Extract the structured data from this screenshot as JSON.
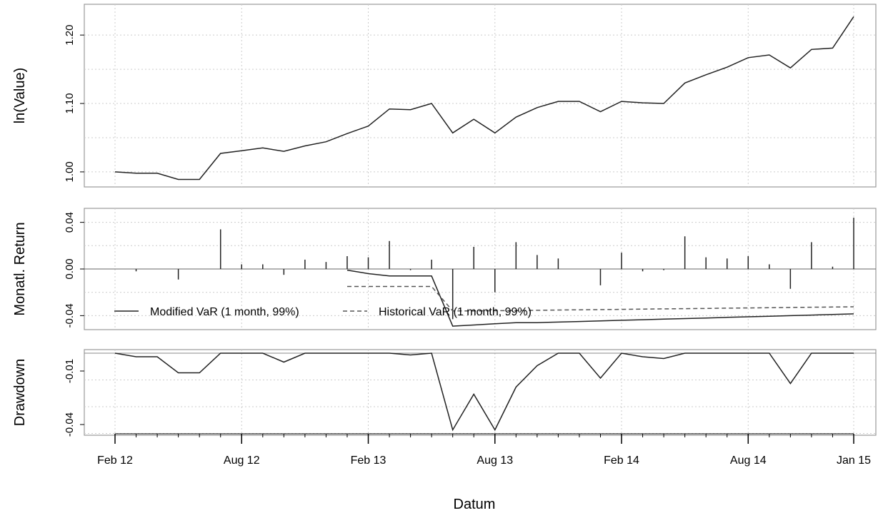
{
  "chart_data": [
    {
      "type": "line",
      "ylabel": "ln(Value)",
      "y_ticks": [
        "1.00",
        "1.10",
        "1.20"
      ],
      "ylim": [
        0.978,
        1.245
      ],
      "grid": true,
      "series": [
        {
          "values": [
            1.0,
            0.998,
            0.998,
            0.989,
            0.989,
            1.027,
            1.031,
            1.035,
            1.03,
            1.038,
            1.044,
            1.056,
            1.067,
            1.092,
            1.091,
            1.1,
            1.057,
            1.077,
            1.057,
            1.08,
            1.094,
            1.103,
            1.103,
            1.088,
            1.103,
            1.101,
            1.1,
            1.13,
            1.142,
            1.153,
            1.167,
            1.171,
            1.152,
            1.179,
            1.181,
            1.227
          ]
        }
      ]
    },
    {
      "type": "bar",
      "ylabel": "Monatl. Return",
      "y_ticks": [
        "-0.04",
        "0.00",
        "0.04"
      ],
      "ylim": [
        -0.052,
        0.052
      ],
      "grid": true,
      "bars": {
        "values": [
          0.0,
          -0.002,
          0.0,
          -0.009,
          0.0,
          0.034,
          0.004,
          0.004,
          -0.005,
          0.008,
          0.006,
          0.011,
          0.01,
          0.024,
          -0.001,
          0.008,
          -0.043,
          0.019,
          -0.02,
          0.023,
          0.012,
          0.009,
          0.0,
          -0.014,
          0.014,
          -0.002,
          -0.001,
          0.028,
          0.01,
          0.009,
          0.011,
          0.004,
          -0.017,
          0.023,
          0.002,
          0.044
        ]
      },
      "series": [
        {
          "name": "Modified VaR (1 month, 99%)",
          "dash": "solid",
          "start_index": 11,
          "values": [
            -0.001,
            -0.004,
            -0.006,
            -0.006,
            -0.006,
            -0.049,
            -0.048,
            -0.047,
            -0.046,
            -0.046,
            -0.0455,
            -0.045,
            -0.0445,
            -0.044,
            -0.0435,
            -0.043,
            -0.0425,
            -0.042,
            -0.0415,
            -0.041,
            -0.0405,
            -0.04,
            -0.0395,
            -0.039,
            -0.0385
          ]
        },
        {
          "name": "Historical VaR (1 month, 99%)",
          "dash": "dashed",
          "start_index": 11,
          "values": [
            -0.015,
            -0.015,
            -0.015,
            -0.015,
            -0.015,
            -0.036,
            -0.036,
            -0.0358,
            -0.0356,
            -0.0354,
            -0.0352,
            -0.035,
            -0.0348,
            -0.0346,
            -0.0344,
            -0.0342,
            -0.034,
            -0.0338,
            -0.0336,
            -0.0334,
            -0.0332,
            -0.033,
            -0.0328,
            -0.0326,
            -0.0324
          ]
        }
      ]
    },
    {
      "type": "line",
      "ylabel": "Drawdown",
      "y_ticks": [
        "-0.04",
        "-0.01"
      ],
      "ylim": [
        -0.046,
        0.002
      ],
      "grid": true,
      "series": [
        {
          "values": [
            0.0,
            -0.002,
            -0.002,
            -0.011,
            -0.011,
            0.0,
            0.0,
            0.0,
            -0.005,
            0.0,
            0.0,
            0.0,
            0.0,
            0.0,
            -0.001,
            0.0,
            -0.043,
            -0.023,
            -0.043,
            -0.019,
            -0.007,
            0.0,
            0.0,
            -0.014,
            0.0,
            -0.002,
            -0.003,
            0.0,
            0.0,
            0.0,
            0.0,
            0.0,
            -0.017,
            0.0,
            0.0,
            0.0
          ]
        }
      ]
    }
  ],
  "x_axis": {
    "xlabel": "Datum",
    "n_points": 36,
    "ticks": [
      {
        "label": "Feb 12",
        "index": 0
      },
      {
        "label": "Aug 12",
        "index": 6
      },
      {
        "label": "Feb 13",
        "index": 12
      },
      {
        "label": "Aug 13",
        "index": 18
      },
      {
        "label": "Feb 14",
        "index": 24
      },
      {
        "label": "Aug 14",
        "index": 30
      },
      {
        "label": "Jan 15",
        "index": 35
      }
    ],
    "minor_tick_count": 36
  },
  "colors": {
    "line": "#222222",
    "dashed": "#555555",
    "grid": "#cccccc",
    "frame": "#999999"
  }
}
